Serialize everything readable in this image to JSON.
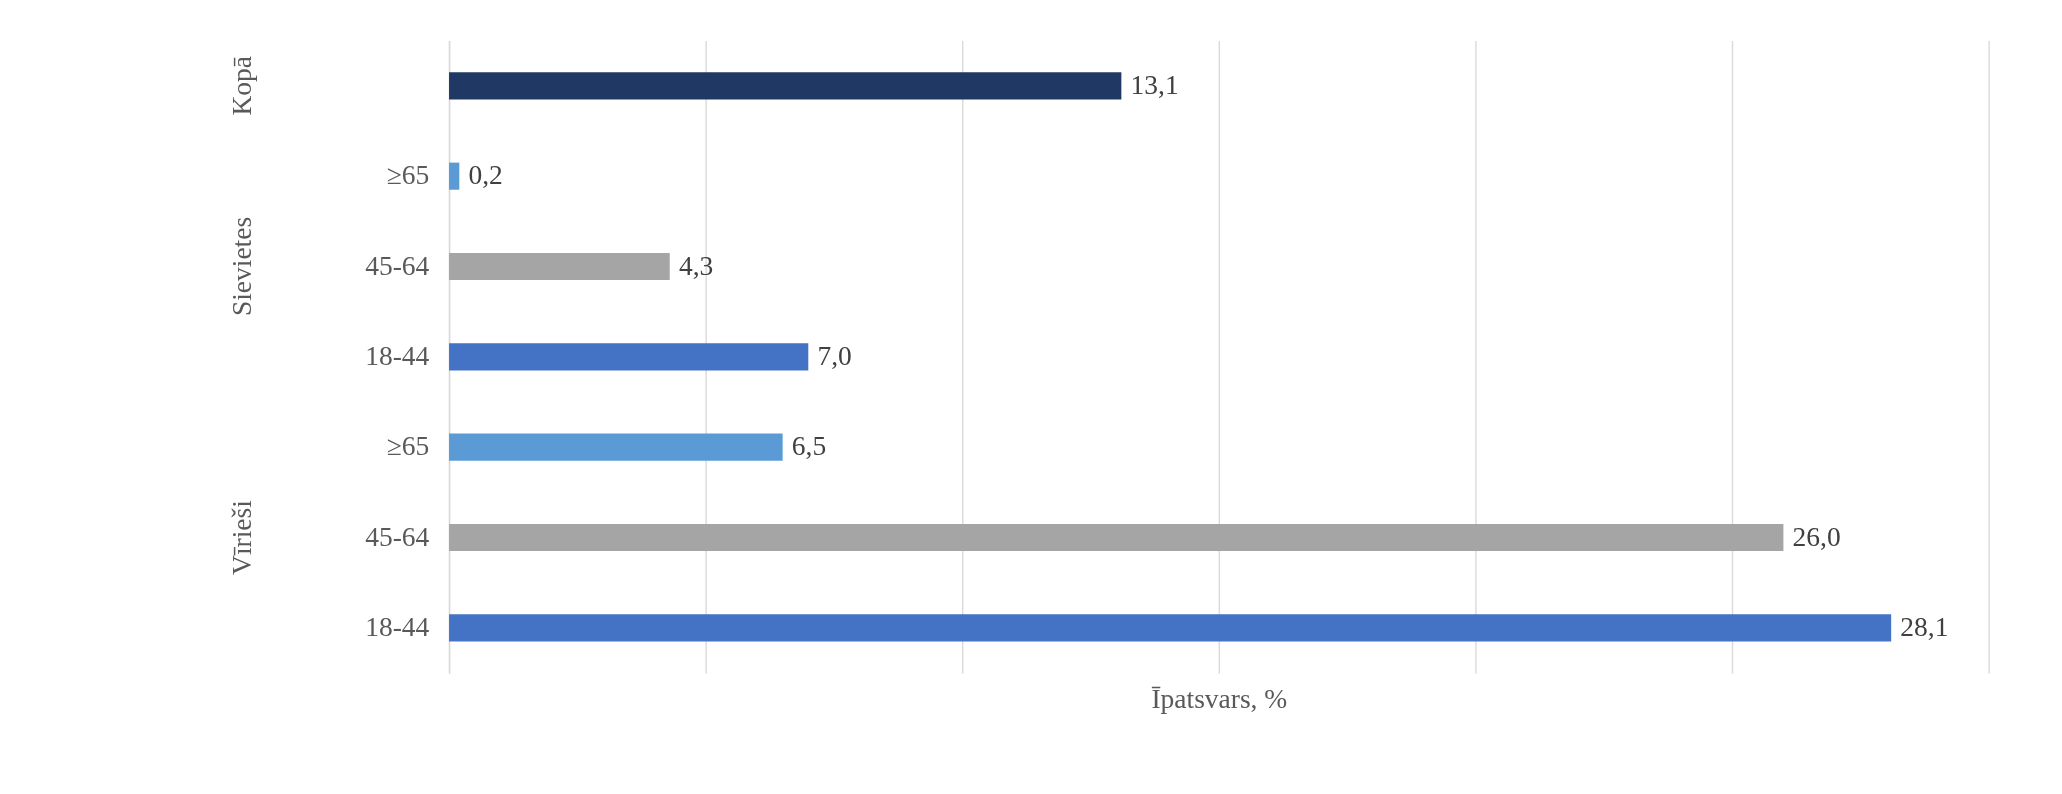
{
  "chart_data": {
    "type": "bar",
    "orientation": "horizontal",
    "xlabel": "Īpatsvars, %",
    "categories": [
      null,
      "≥65",
      "45-64",
      "18-44",
      "≥65",
      "45-64",
      "18-44"
    ],
    "values": [
      13.1,
      0.2,
      4.3,
      7.0,
      6.5,
      26.0,
      28.1
    ],
    "colors": [
      "#203864",
      "#5b9bd5",
      "#a5a5a5",
      "#4472c4",
      "#5b9bd5",
      "#a5a5a5",
      "#4472c4"
    ],
    "value_labels": [
      "13,1",
      "0,2",
      "4,3",
      "7,0",
      "6,5",
      "26,0",
      "28,1"
    ],
    "annotations": [
      "Kopā",
      "Sievietes",
      "Vīrieši"
    ],
    "xlim": [
      0,
      30
    ],
    "xticks": [
      {
        "value": 0,
        "label": null
      },
      {
        "value": 5,
        "label": null
      },
      {
        "value": 10,
        "label": null
      },
      {
        "value": 15,
        "label": null
      },
      {
        "value": 20,
        "label": null
      },
      {
        "value": 25,
        "label": null
      },
      {
        "value": 30,
        "label": null
      }
    ],
    "grid": "x",
    "tick_labels": "y"
  }
}
